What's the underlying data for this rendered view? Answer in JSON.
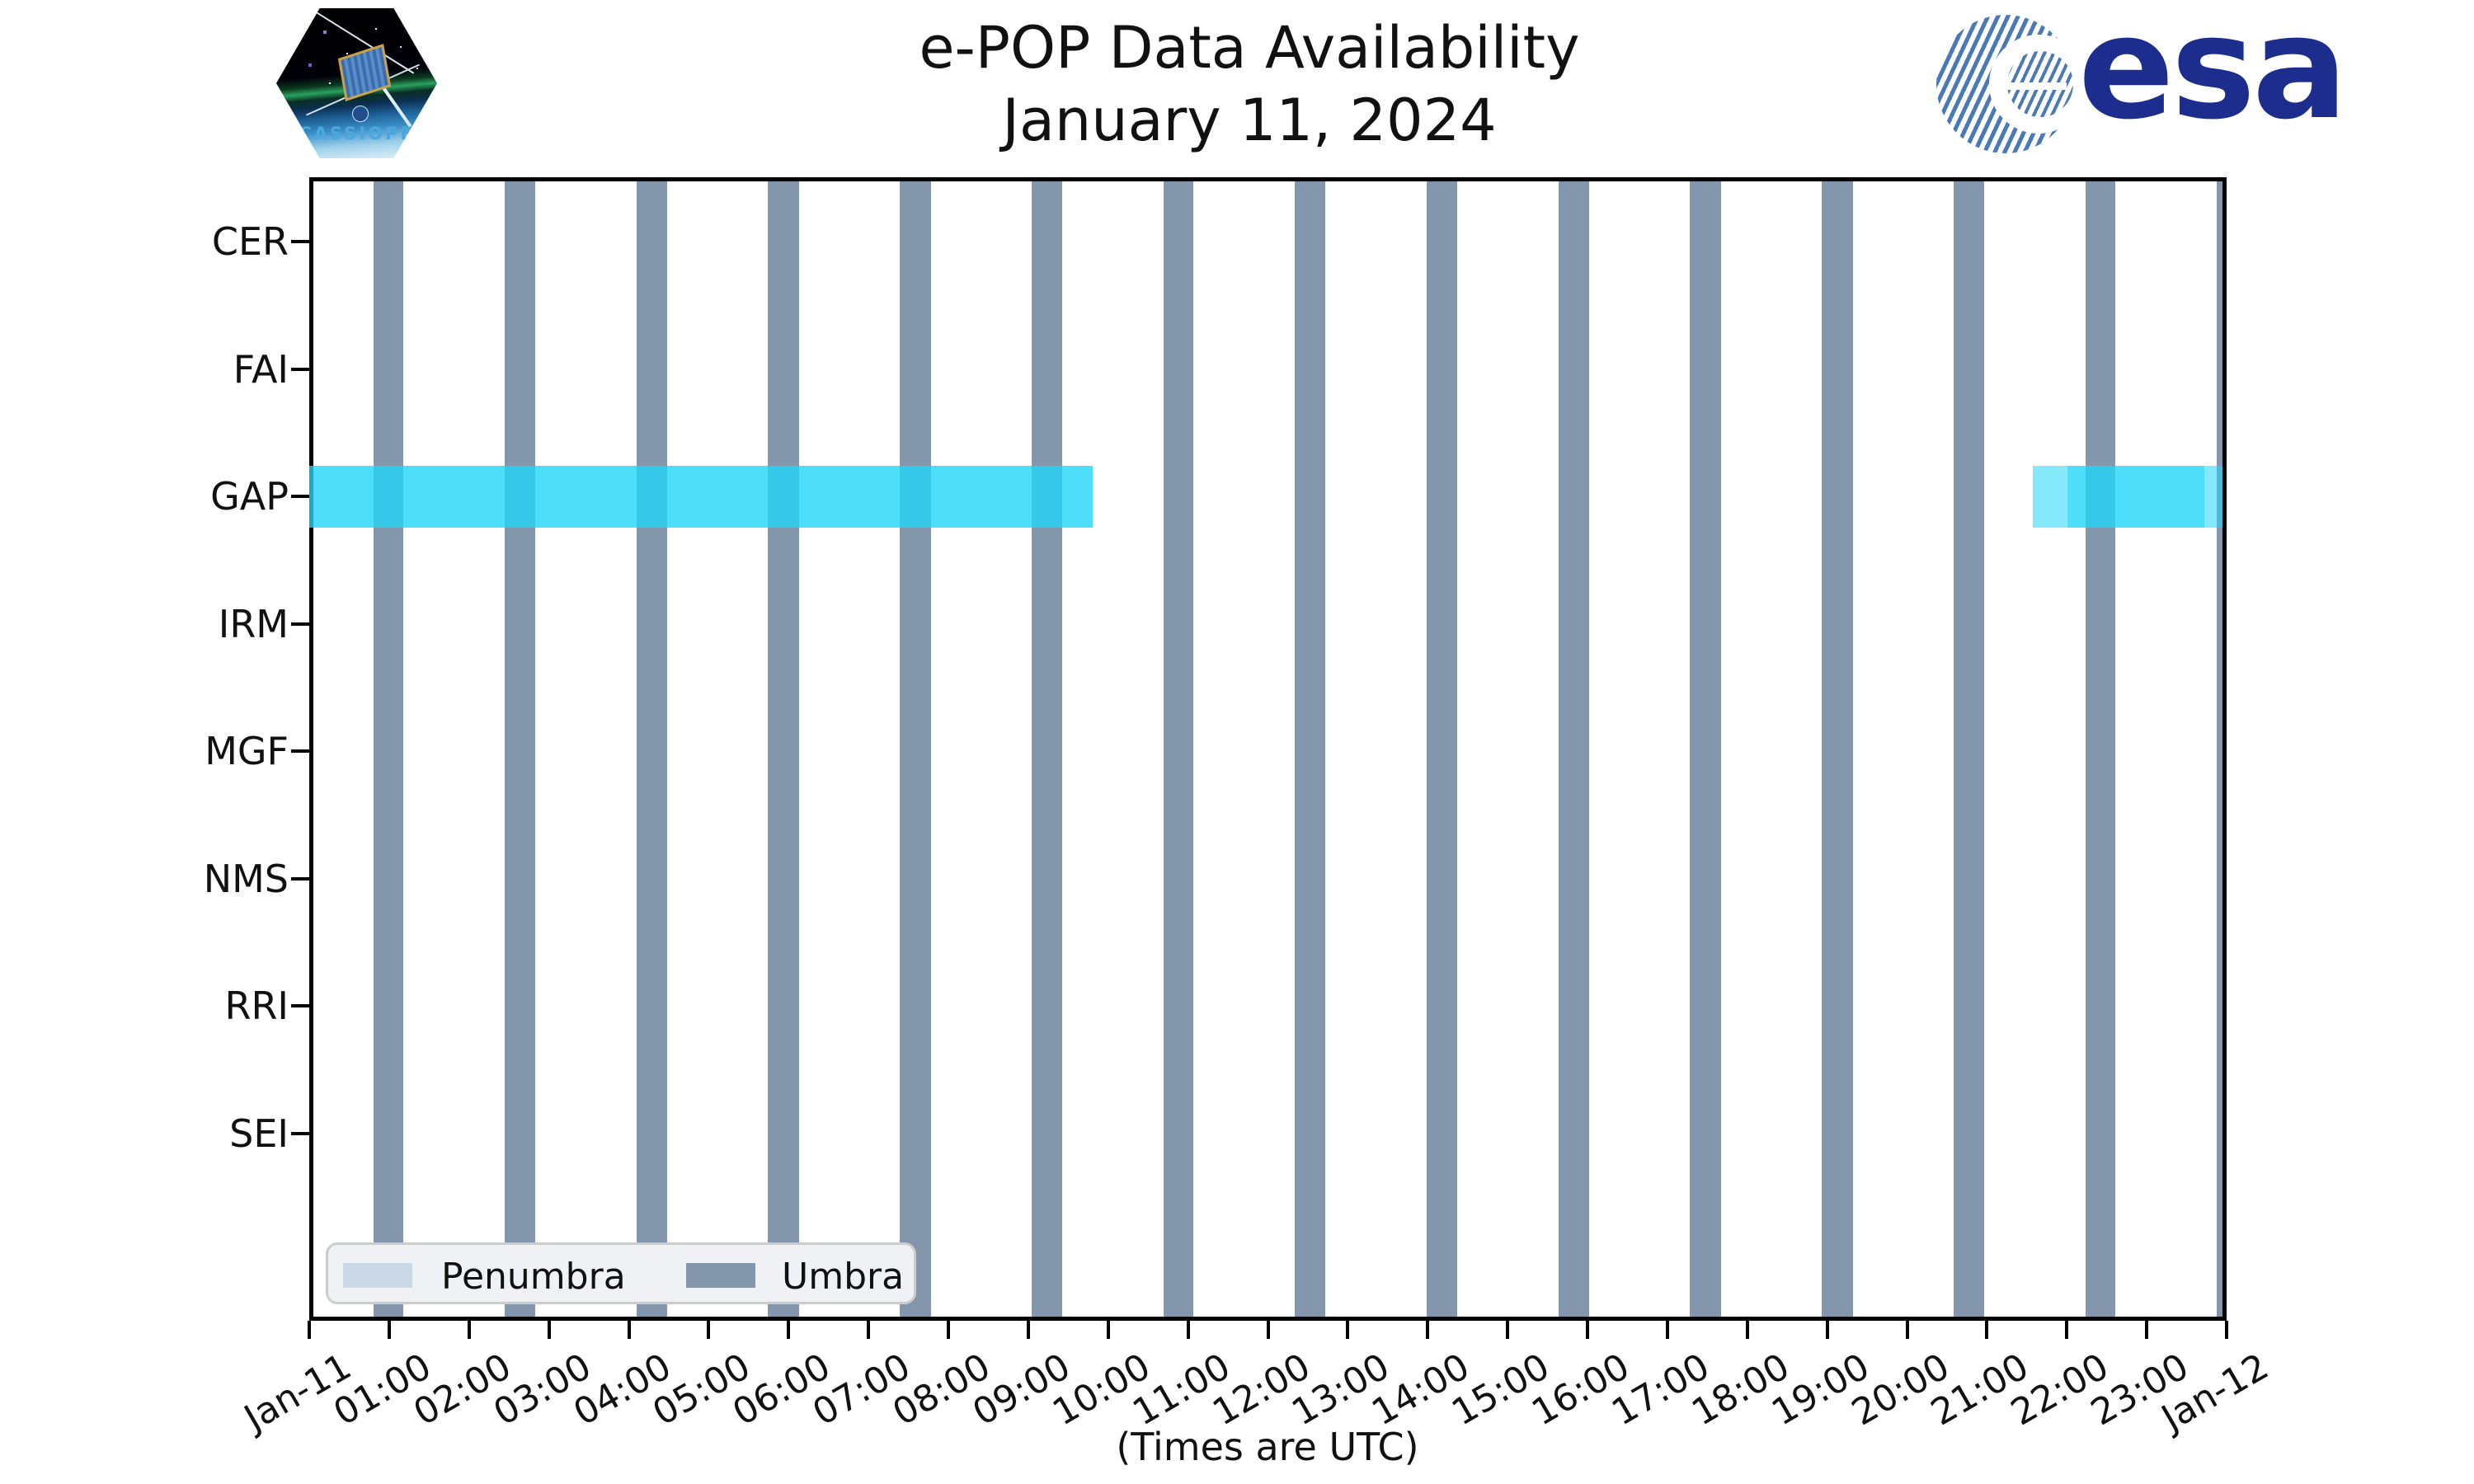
{
  "header": {
    "title_line1": "e-POP Data Availability",
    "title_line2": "January 11, 2024",
    "cassiope_patch_text": "CASSIOPE",
    "esa_logo_text": "esa"
  },
  "chart_data": {
    "type": "timeline",
    "title": "e-POP Data Availability",
    "subtitle": "January 11, 2024",
    "xlabel": "(Times are UTC)",
    "x_axis": {
      "start": "Jan-11 00:00 UTC",
      "end": "Jan-12 00:00 UTC",
      "hours_range": [
        0,
        24
      ],
      "tick_labels": [
        "Jan-11",
        "01:00",
        "02:00",
        "03:00",
        "04:00",
        "05:00",
        "06:00",
        "07:00",
        "08:00",
        "09:00",
        "10:00",
        "11:00",
        "12:00",
        "13:00",
        "14:00",
        "15:00",
        "16:00",
        "17:00",
        "18:00",
        "19:00",
        "20:00",
        "21:00",
        "22:00",
        "23:00",
        "Jan-12"
      ]
    },
    "instruments": [
      "CER",
      "FAI",
      "GAP",
      "IRM",
      "MGF",
      "NMS",
      "RRI",
      "SEI"
    ],
    "availability": [
      {
        "instrument": "GAP",
        "start_utc": "00:00",
        "end_utc": "09:49",
        "start_h": 0.0,
        "end_h": 9.81,
        "layers": 2
      },
      {
        "instrument": "GAP",
        "start_utc": "21:34",
        "end_utc": "23:43",
        "start_h": 21.57,
        "end_h": 23.72,
        "layers": 1
      },
      {
        "instrument": "GAP",
        "start_utc": "22:01",
        "end_utc": "24:00",
        "start_h": 22.01,
        "end_h": 24.0,
        "layers": 1
      }
    ],
    "umbra_windows": [
      {
        "start_h": 0.8,
        "end_h": 1.18,
        "start_utc": "00:48",
        "end_utc": "01:11"
      },
      {
        "start_h": 2.45,
        "end_h": 2.83,
        "start_utc": "02:27",
        "end_utc": "02:50"
      },
      {
        "start_h": 4.1,
        "end_h": 4.48,
        "start_utc": "04:06",
        "end_utc": "04:29"
      },
      {
        "start_h": 5.74,
        "end_h": 6.13,
        "start_utc": "05:45",
        "end_utc": "06:08"
      },
      {
        "start_h": 7.39,
        "end_h": 7.78,
        "start_utc": "07:24",
        "end_utc": "07:46"
      },
      {
        "start_h": 9.04,
        "end_h": 9.42,
        "start_utc": "09:02",
        "end_utc": "09:25"
      },
      {
        "start_h": 10.69,
        "end_h": 11.07,
        "start_utc": "10:41",
        "end_utc": "11:04"
      },
      {
        "start_h": 12.34,
        "end_h": 12.72,
        "start_utc": "12:20",
        "end_utc": "12:43"
      },
      {
        "start_h": 13.99,
        "end_h": 14.37,
        "start_utc": "13:59",
        "end_utc": "14:22"
      },
      {
        "start_h": 15.64,
        "end_h": 16.02,
        "start_utc": "15:38",
        "end_utc": "16:01"
      },
      {
        "start_h": 17.28,
        "end_h": 17.67,
        "start_utc": "17:17",
        "end_utc": "17:40"
      },
      {
        "start_h": 18.93,
        "end_h": 19.32,
        "start_utc": "18:56",
        "end_utc": "19:19"
      },
      {
        "start_h": 20.58,
        "end_h": 20.96,
        "start_utc": "20:35",
        "end_utc": "20:58"
      },
      {
        "start_h": 22.23,
        "end_h": 22.61,
        "start_utc": "22:14",
        "end_utc": "22:37"
      },
      {
        "start_h": 23.88,
        "end_h": 24.0,
        "start_utc": "23:53",
        "end_utc": "24:00"
      }
    ],
    "legend": [
      {
        "label": "Penumbra",
        "color": "#ccd9e9"
      },
      {
        "label": "Umbra",
        "color": "#8496ab"
      }
    ],
    "layout_hints": {
      "grid": false,
      "legend_position": "lower left",
      "bar_row": "GAP"
    },
    "colors": {
      "availability_cyan": "#23d5f7",
      "umbra": "#8496ab",
      "penumbra": "#ccd9e9",
      "esa_navy": "#1d2d8e"
    }
  }
}
